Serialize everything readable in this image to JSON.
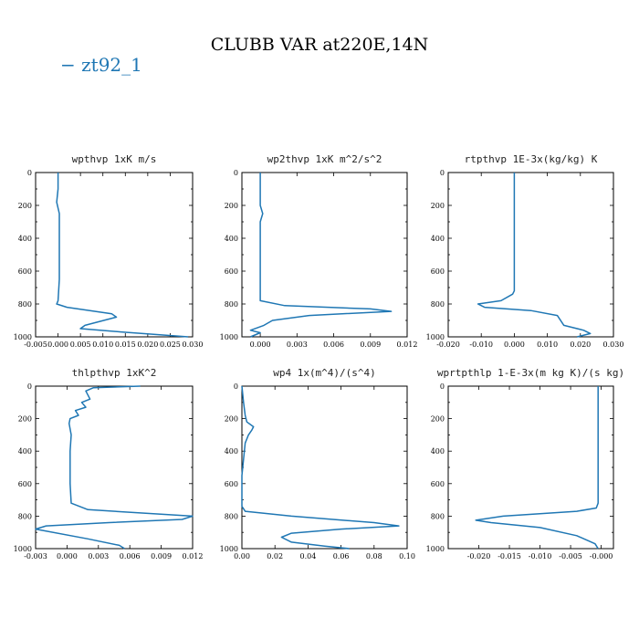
{
  "figure": {
    "title": "CLUBB VAR at220E,14N",
    "legend": "− zt92_1"
  },
  "colors": {
    "series": "#1f77b4"
  },
  "chart_data": [
    {
      "type": "line",
      "title": "wpthvp  1xK m/s",
      "xlim": [
        -0.005,
        0.03
      ],
      "ylim": [
        1000,
        0
      ],
      "xticks": [
        -0.005,
        0.0,
        0.005,
        0.01,
        0.015,
        0.02,
        0.025,
        0.03
      ],
      "xtick_labels": [
        "-0.005",
        "0.000",
        "0.005",
        "0.010",
        "0.015",
        "0.020",
        "0.025",
        "0.030"
      ],
      "yticks": [
        0,
        200,
        400,
        600,
        800,
        1000
      ],
      "series": [
        {
          "x": [
            0.0,
            0.0,
            -0.0003,
            0.0003,
            0.0003,
            0.0003,
            0.0003,
            0.0003,
            0.0,
            -0.0003,
            0.002,
            0.012,
            0.013,
            0.006,
            0.005,
            0.014,
            0.029
          ],
          "y": [
            0,
            100,
            180,
            250,
            350,
            450,
            550,
            650,
            780,
            800,
            820,
            860,
            880,
            930,
            950,
            970,
            1000
          ]
        }
      ]
    },
    {
      "type": "line",
      "title": "wp2thvp  1xK m^2/s^2",
      "xlim": [
        -0.0015,
        0.012
      ],
      "ylim": [
        1000,
        0
      ],
      "xticks": [
        0.0,
        0.003,
        0.006,
        0.009,
        0.012
      ],
      "xtick_labels": [
        "0.000",
        "0.003",
        "0.006",
        "0.009",
        "0.012"
      ],
      "yticks": [
        0,
        200,
        400,
        600,
        800,
        1000
      ],
      "series": [
        {
          "x": [
            0.0,
            0.0,
            0.0,
            0.0002,
            0.0,
            0.0,
            0.0,
            0.0,
            0.002,
            0.009,
            0.0107,
            0.004,
            0.001,
            0.0003,
            -0.0008,
            0.0,
            -0.0008
          ],
          "y": [
            0,
            100,
            200,
            250,
            300,
            400,
            600,
            780,
            810,
            830,
            845,
            870,
            900,
            930,
            960,
            975,
            1000
          ]
        }
      ]
    },
    {
      "type": "line",
      "title": "rtpthvp  1E-3x(kg/kg) K",
      "xlim": [
        -0.02,
        0.03
      ],
      "ylim": [
        1000,
        0
      ],
      "xticks": [
        -0.02,
        -0.01,
        0.0,
        0.01,
        0.02,
        0.03
      ],
      "xtick_labels": [
        "-0.020",
        "-0.010",
        "0.000",
        "0.010",
        "0.020",
        "0.030"
      ],
      "yticks": [
        0,
        200,
        400,
        600,
        800,
        1000
      ],
      "series": [
        {
          "x": [
            0.0,
            0.0,
            0.0,
            0.0,
            0.0,
            -0.0005,
            -0.004,
            -0.011,
            -0.009,
            0.005,
            0.013,
            0.015,
            0.021,
            0.023,
            0.019
          ],
          "y": [
            0,
            200,
            400,
            600,
            720,
            740,
            780,
            800,
            820,
            840,
            870,
            930,
            960,
            980,
            1000
          ]
        }
      ]
    },
    {
      "type": "line",
      "title": "thlpthvp  1xK^2",
      "xlim": [
        -0.003,
        0.012
      ],
      "ylim": [
        1000,
        0
      ],
      "xticks": [
        -0.003,
        0.0,
        0.003,
        0.006,
        0.009,
        0.012
      ],
      "xtick_labels": [
        "-0.003",
        "0.000",
        "0.003",
        "0.006",
        "0.009",
        "0.012"
      ],
      "yticks": [
        0,
        200,
        400,
        600,
        800,
        1000
      ],
      "series": [
        {
          "x": [
            0.007,
            0.0025,
            0.0018,
            0.0022,
            0.0014,
            0.0018,
            0.0008,
            0.0011,
            0.0003,
            0.0002,
            0.0004,
            0.0003,
            0.0003,
            0.0003,
            0.0004,
            0.002,
            0.0095,
            0.012,
            0.011,
            0.004,
            -0.002,
            -0.003,
            0.002,
            0.005,
            0.0055
          ],
          "y": [
            0,
            10,
            30,
            80,
            100,
            130,
            150,
            180,
            200,
            230,
            300,
            400,
            500,
            600,
            720,
            760,
            790,
            800,
            820,
            840,
            860,
            880,
            940,
            980,
            1000
          ]
        }
      ]
    },
    {
      "type": "line",
      "title": "wp4  1x(m^4)/(s^4)",
      "xlim": [
        0.0,
        0.1
      ],
      "ylim": [
        1000,
        0
      ],
      "xticks": [
        0.0,
        0.02,
        0.04,
        0.06,
        0.08,
        0.1
      ],
      "xtick_labels": [
        "0.00",
        "0.02",
        "0.04",
        "0.06",
        "0.08",
        "0.10"
      ],
      "yticks": [
        0,
        200,
        400,
        600,
        800,
        1000
      ],
      "series": [
        {
          "x": [
            0.0,
            0.001,
            0.002,
            0.003,
            0.007,
            0.006,
            0.004,
            0.002,
            0.001,
            0.0,
            0.0,
            0.002,
            0.03,
            0.08,
            0.095,
            0.06,
            0.03,
            0.024,
            0.03,
            0.05,
            0.065
          ],
          "y": [
            0,
            100,
            180,
            220,
            250,
            270,
            300,
            350,
            450,
            550,
            740,
            770,
            800,
            840,
            860,
            880,
            905,
            930,
            960,
            985,
            1000
          ]
        }
      ]
    },
    {
      "type": "line",
      "title": "wprtpthlp  1-E-3x(m kg K)/(s kg)",
      "xlim": [
        -0.025,
        0.002
      ],
      "ylim": [
        1000,
        0
      ],
      "xticks": [
        -0.02,
        -0.015,
        -0.01,
        -0.005,
        0.0
      ],
      "xtick_labels": [
        "-0.020",
        "-0.015",
        "-0.010",
        "-0.005",
        "-0.000"
      ],
      "yticks": [
        0,
        200,
        400,
        600,
        800,
        1000
      ],
      "series": [
        {
          "x": [
            -0.0005,
            -0.0005,
            -0.0005,
            -0.0005,
            -0.0005,
            -0.0008,
            -0.004,
            -0.016,
            -0.0205,
            -0.018,
            -0.01,
            -0.004,
            -0.001,
            -0.0005
          ],
          "y": [
            0,
            200,
            400,
            600,
            720,
            750,
            770,
            800,
            825,
            840,
            870,
            920,
            970,
            1000
          ]
        }
      ]
    }
  ]
}
